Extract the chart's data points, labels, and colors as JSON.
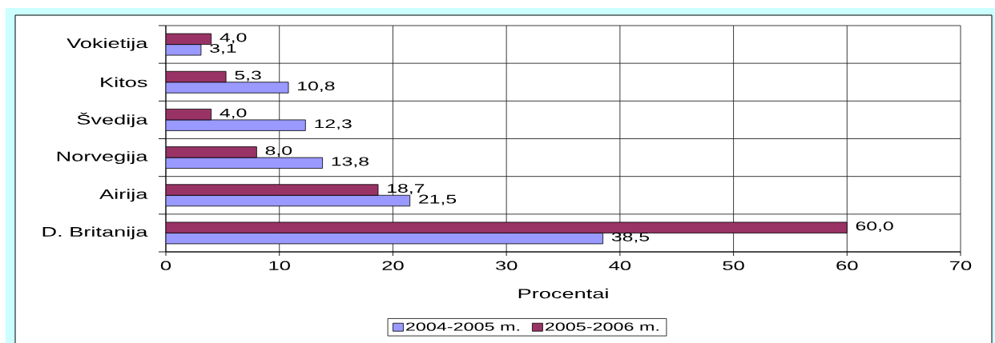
{
  "chart_data": {
    "type": "bar",
    "orientation": "horizontal",
    "categories": [
      "Vokietija",
      "Kitos",
      "Švedija",
      "Norvegija",
      "Airija",
      "D. Britanija"
    ],
    "series": [
      {
        "name": "2004-2005 m.",
        "color": "#9999ff",
        "values": [
          3.1,
          10.8,
          12.3,
          13.8,
          21.5,
          38.5
        ],
        "value_labels": [
          "3,1",
          "10,8",
          "12,3",
          "13,8",
          "21,5",
          "38,5"
        ]
      },
      {
        "name": "2005-2006 m.",
        "color": "#993366",
        "values": [
          4.0,
          5.3,
          4.0,
          8.0,
          18.7,
          60.0
        ],
        "value_labels": [
          "4,0",
          "5,3",
          "4,0",
          "8,0",
          "18,7",
          "60,0"
        ]
      }
    ],
    "xlabel": "Procentai",
    "xlim": [
      0,
      70
    ],
    "xticks": [
      0,
      10,
      20,
      30,
      40,
      50,
      60,
      70
    ],
    "grid": true,
    "legend": "bottom"
  }
}
